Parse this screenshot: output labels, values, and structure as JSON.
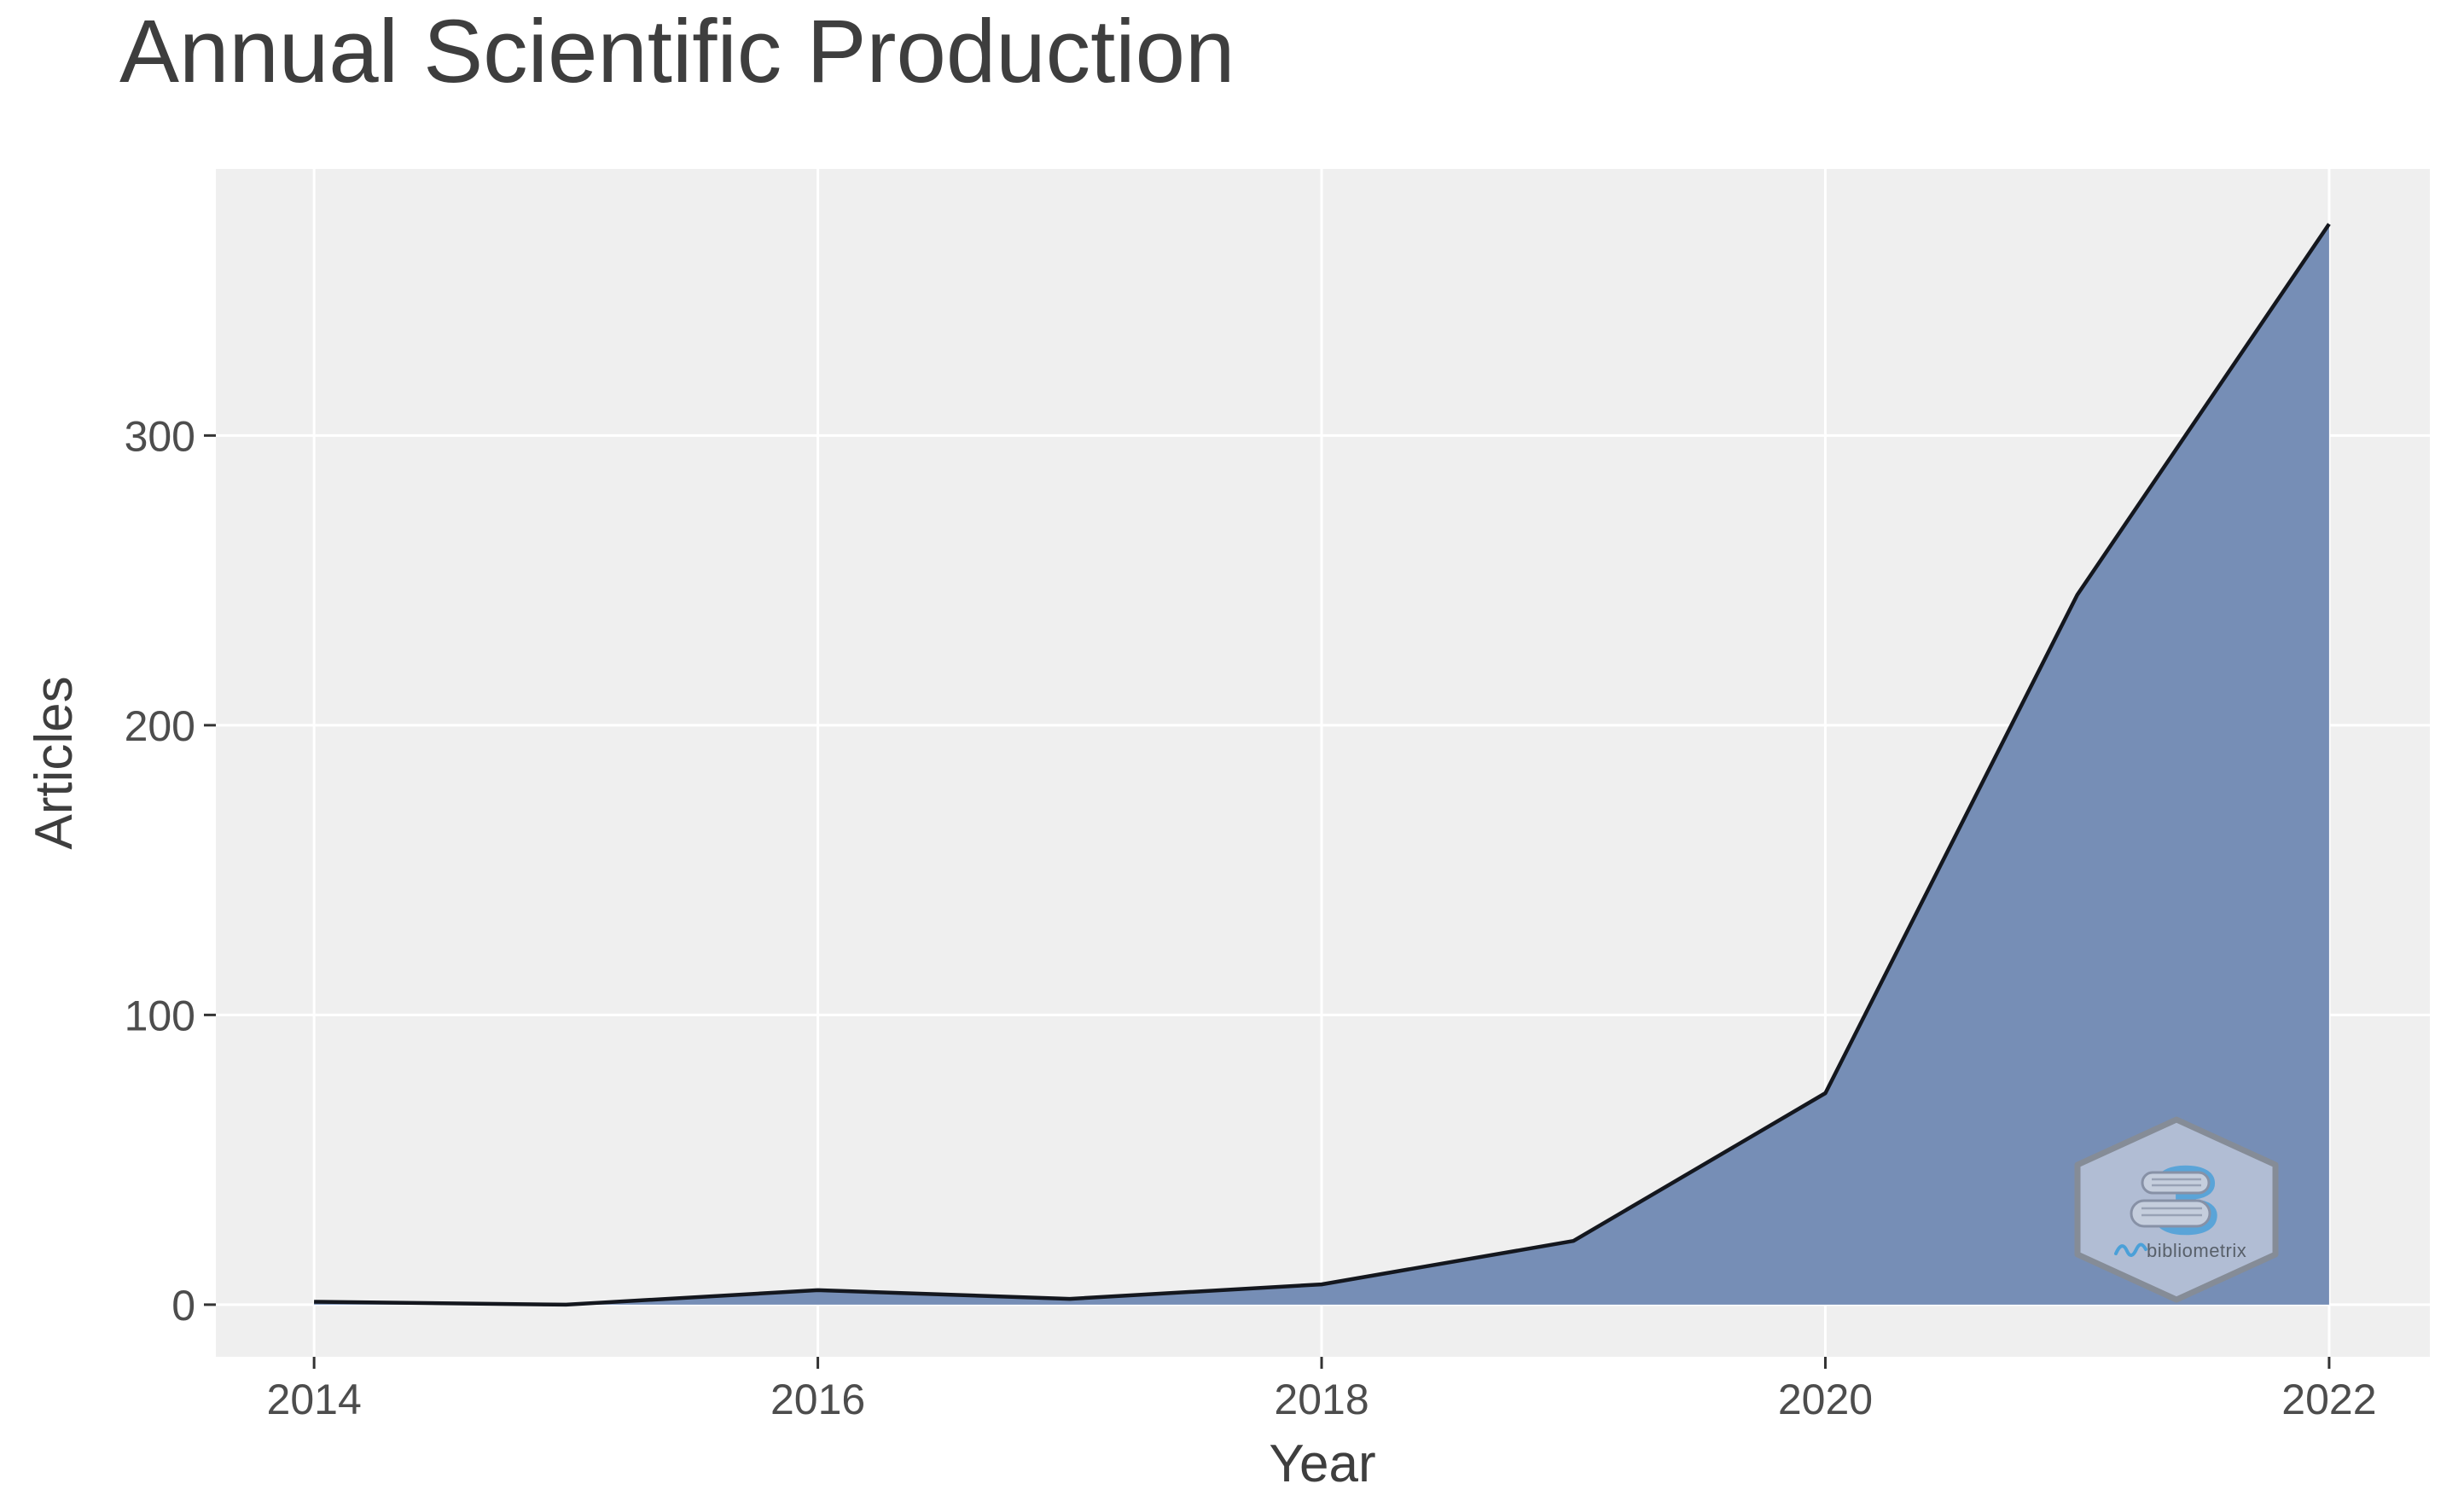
{
  "chart_data": {
    "type": "area",
    "title": "Annual Scientific Production",
    "xlabel": "Year",
    "ylabel": "Articles",
    "x": [
      2014,
      2015,
      2016,
      2017,
      2018,
      2019,
      2020,
      2021,
      2022
    ],
    "values": [
      1,
      0,
      5,
      2,
      7,
      22,
      73,
      245,
      373
    ],
    "series_name": "Articles",
    "x_ticks": [
      2014,
      2016,
      2018,
      2020,
      2022
    ],
    "x_tick_labels": [
      "2014",
      "2016",
      "2018",
      "2020",
      "2022"
    ],
    "y_ticks": [
      0,
      100,
      200,
      300
    ],
    "y_tick_labels": [
      "0",
      "100",
      "200",
      "300"
    ],
    "xlim": [
      2013.61,
      2022.4
    ],
    "ylim": [
      -18,
      392
    ],
    "grid": "major-only, white on gray panel",
    "legend": "none"
  },
  "watermark": {
    "name": "bibliometrix",
    "logo_glyph": "3"
  },
  "colors": {
    "figure_bg": "#FFFFFF",
    "panel_bg": "#EFEFEF",
    "grid": "#FFFFFF",
    "area_fill": "#768EB6",
    "line": "#14171E",
    "tick_mark": "#333333",
    "tick_text": "#4D4D4D",
    "title_text": "#3E3E3E",
    "axis_title_text": "#3E3E3E",
    "watermark_fill": "#C2CBDC",
    "watermark_border": "#858C97",
    "logo_blue": "#4BA0D8",
    "logo_text": "#4F555E"
  }
}
